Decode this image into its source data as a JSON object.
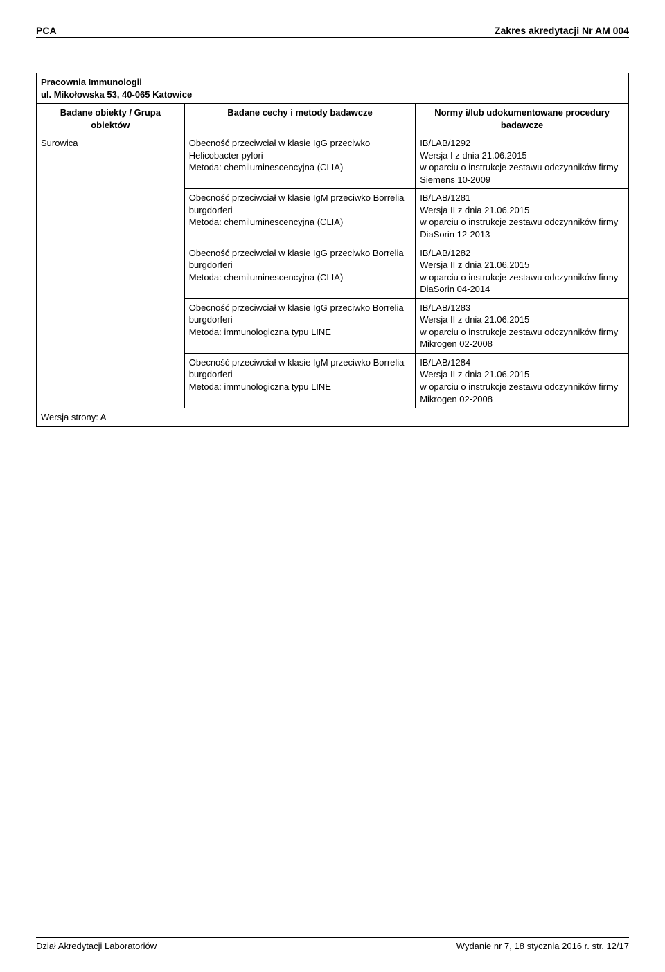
{
  "header": {
    "left": "PCA",
    "right": "Zakres akredytacji Nr AM 004"
  },
  "lab": {
    "name_line1": "Pracownia Immunologii",
    "name_line2": "ul. Mikołowska 53, 40-065 Katowice"
  },
  "table": {
    "col1_header": "Badane obiekty / Grupa obiektów",
    "col2_header": "Badane cechy i metody badawcze",
    "col3_header": "Normy i/lub udokumentowane procedury badawcze",
    "sample_label": "Surowica",
    "rows": [
      {
        "method": "Obecność przeciwciał w klasie IgG przeciwko Helicobacter pylori\nMetoda: chemiluminescencyjna (CLIA)",
        "norm": "IB/LAB/1292\nWersja I z dnia 21.06.2015\nw oparciu o instrukcje zestawu odczynników firmy Siemens 10-2009"
      },
      {
        "method": "Obecność przeciwciał w klasie IgM przeciwko Borrelia burgdorferi\nMetoda: chemiluminescencyjna (CLIA)",
        "norm": "IB/LAB/1281\nWersja II z dnia 21.06.2015\nw oparciu o instrukcje zestawu odczynników firmy DiaSorin 12-2013"
      },
      {
        "method": "Obecność przeciwciał w klasie IgG przeciwko Borrelia burgdorferi\nMetoda: chemiluminescencyjna (CLIA)",
        "norm": "IB/LAB/1282\nWersja II z dnia 21.06.2015\nw oparciu o instrukcje zestawu odczynników firmy DiaSorin 04-2014"
      },
      {
        "method": "Obecność przeciwciał w klasie IgG przeciwko Borrelia burgdorferi\nMetoda: immunologiczna typu LINE",
        "norm": "IB/LAB/1283\nWersja II z dnia 21.06.2015\nw oparciu o instrukcje zestawu odczynników firmy Mikrogen 02-2008"
      },
      {
        "method": "Obecność przeciwciał w klasie IgM przeciwko Borrelia burgdorferi\nMetoda: immunologiczna typu LINE",
        "norm": "IB/LAB/1284\nWersja II z dnia 21.06.2015\nw oparciu o instrukcje zestawu odczynników firmy Mikrogen 02-2008"
      }
    ],
    "version_line": "Wersja strony: A"
  },
  "footer": {
    "left": "Dział Akredytacji Laboratoriów",
    "right": "Wydanie nr 7, 18 stycznia 2016 r.    str.  12/17"
  }
}
